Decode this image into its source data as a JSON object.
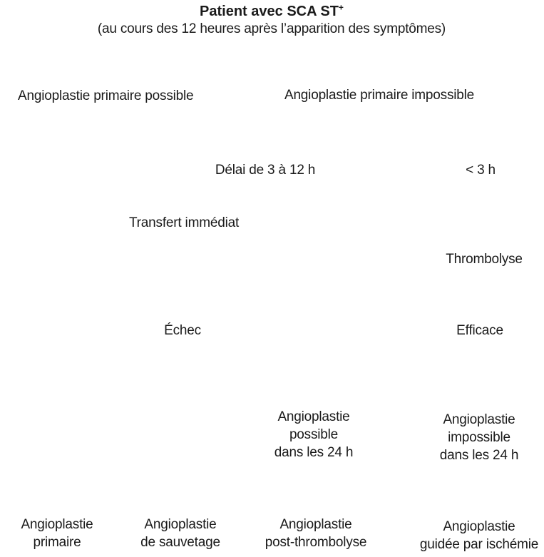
{
  "title": {
    "main": "Patient avec SCA ST",
    "superscript": "+",
    "subtitle": "(au cours des 12 heures après l’apparition des symptômes)"
  },
  "nodes": {
    "primary_possible": "Angioplastie  primaire possible",
    "primary_impossible": "Angioplastie primaire impossible",
    "delay_3_12": "Délai de 3 à 12 h",
    "under_3h": "< 3 h",
    "immediate_transfer": "Transfert immédiat",
    "thrombolysis": "Thrombolyse",
    "failure": "Échec",
    "effective": "Efficace",
    "angio_possible_24h": [
      "Angioplastie",
      "possible",
      "dans les 24 h"
    ],
    "angio_impossible_24h": [
      "Angioplastie",
      "impossible",
      "dans les 24 h"
    ]
  },
  "outcomes": {
    "primary": [
      "Angioplastie",
      "primaire"
    ],
    "rescue": [
      "Angioplastie",
      "de sauvetage"
    ],
    "post_thrombolysis": [
      "Angioplastie",
      "post-thrombolyse"
    ],
    "ischemia_guided": [
      "Angioplastie",
      "guidée par ischémie"
    ]
  }
}
